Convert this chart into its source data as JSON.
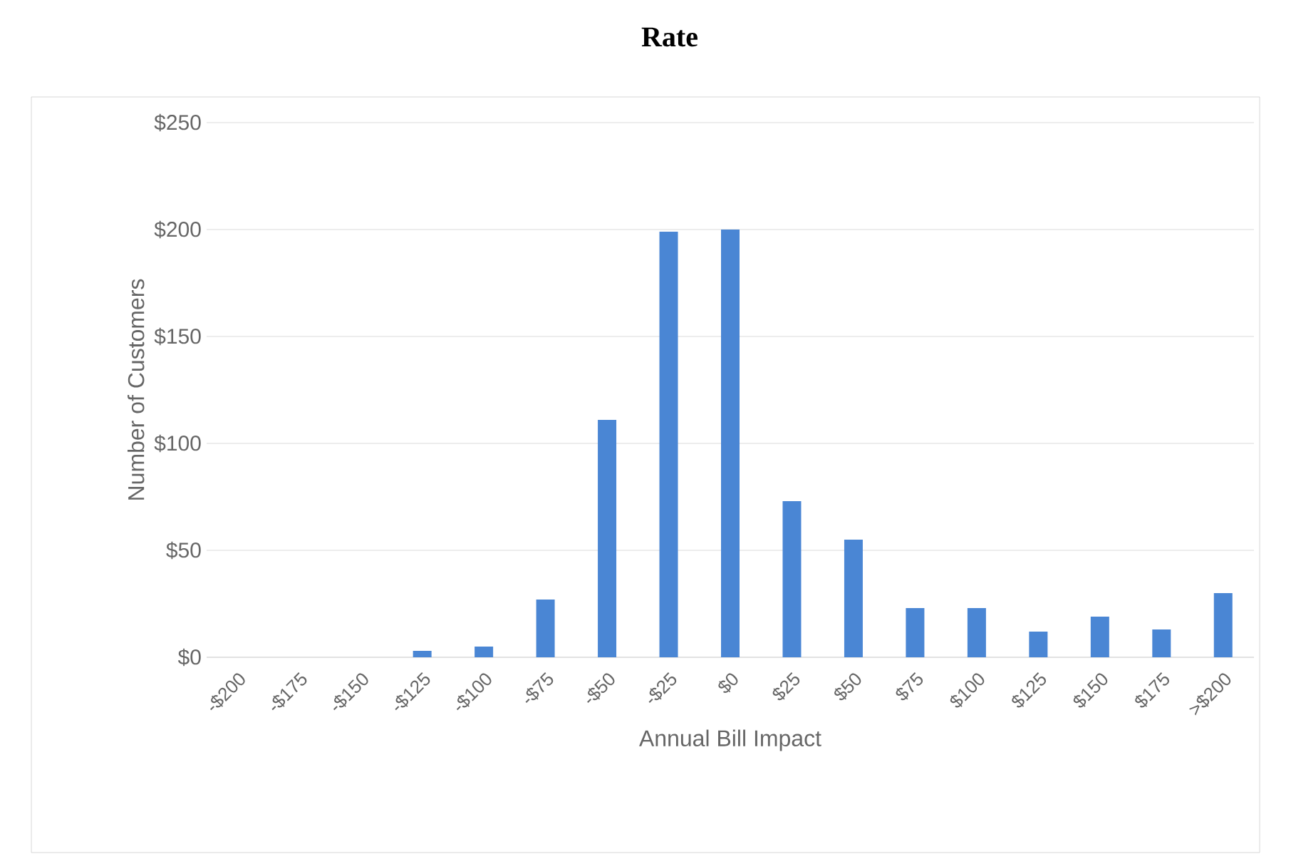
{
  "chart_data": {
    "type": "bar",
    "title": "Rate",
    "xlabel": "Annual Bill Impact",
    "ylabel": "Number of Customers",
    "categories": [
      "-$200",
      "-$175",
      "-$150",
      "-$125",
      "-$100",
      "-$75",
      "-$50",
      "-$25",
      "$0",
      "$25",
      "$50",
      "$75",
      "$100",
      "$125",
      "$150",
      "$175",
      ">$200"
    ],
    "values": [
      0,
      0,
      0,
      3,
      5,
      27,
      111,
      199,
      200,
      73,
      55,
      23,
      23,
      12,
      19,
      13,
      30
    ],
    "color": "#4a86d4",
    "ylim": [
      0,
      250
    ],
    "yticks": [
      {
        "value": 0,
        "label": "$0"
      },
      {
        "value": 50,
        "label": "$50"
      },
      {
        "value": 100,
        "label": "$100"
      },
      {
        "value": 150,
        "label": "$150"
      },
      {
        "value": 200,
        "label": "$200"
      },
      {
        "value": 250,
        "label": "$250"
      }
    ],
    "grid": "y"
  }
}
